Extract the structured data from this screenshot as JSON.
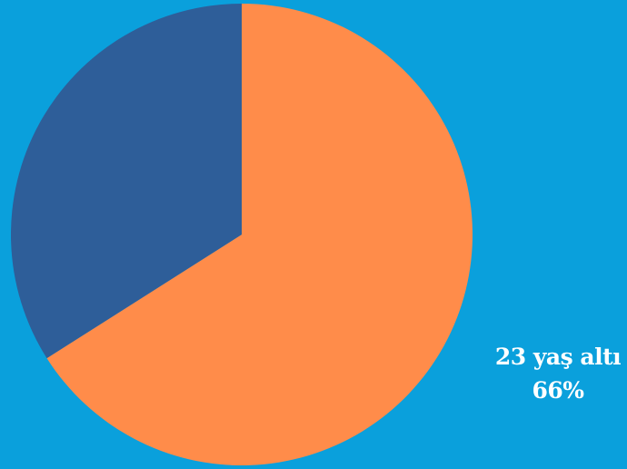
{
  "chart_data": {
    "type": "pie",
    "start_angle_deg": 0,
    "direction": "clockwise",
    "slices": [
      {
        "label": "23 yaş altı",
        "value": 66,
        "value_label": "66%",
        "color": "#ff8c4a"
      },
      {
        "label": "",
        "value": 34,
        "color": "#2e5e99"
      }
    ],
    "background": "#0aa0dc"
  }
}
